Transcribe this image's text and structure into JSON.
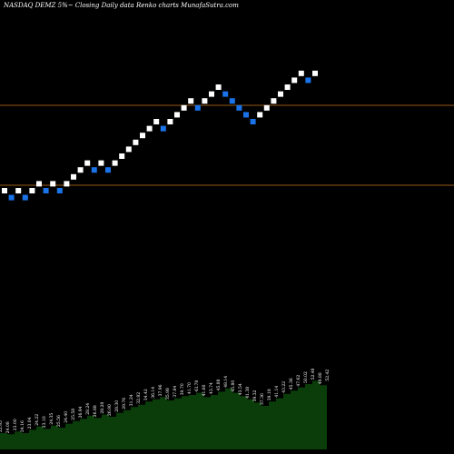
{
  "chart_data": {
    "type": "renko",
    "title": "NASDAQ DEMZ 5%~  Closing Daily data  Renko  charts MunafaSutra.com",
    "brick_directions": [
      1,
      -1,
      1,
      -1,
      1,
      1,
      -1,
      1,
      -1,
      1,
      1,
      1,
      1,
      -1,
      1,
      -1,
      1,
      1,
      1,
      1,
      1,
      1,
      1,
      -1,
      1,
      1,
      1,
      1,
      -1,
      1,
      1,
      1,
      -1,
      -1,
      -1,
      -1,
      -1,
      1,
      1,
      1,
      1,
      1,
      1,
      1,
      -1,
      1
    ],
    "brick_colors": {
      "up": "#ffffff",
      "down": "#1a73e8"
    },
    "reference_lines": [
      {
        "label": "upper",
        "color": "#c8781e"
      },
      {
        "label": "lower",
        "color": "#c8781e"
      }
    ],
    "volume_area_color": "#0a3d0a",
    "volume_labels": [
      "22.95",
      "24.08",
      "23.00",
      "24.16",
      "23.04",
      "24.22",
      "23.10",
      "24.35",
      "25.56",
      "24.40",
      "25.58",
      "26.94",
      "28.24",
      "26.88",
      "28.28",
      "26.90",
      "28.30",
      "29.76",
      "31.24",
      "32.82",
      "34.42",
      "36.14",
      "37.96",
      "35.98",
      "37.84",
      "39.70",
      "41.70",
      "43.78",
      "41.60",
      "43.74",
      "45.88",
      "48.14",
      "45.80",
      "43.54",
      "41.38",
      "39.32",
      "37.36",
      "39.18",
      "41.14",
      "43.22",
      "45.36",
      "47.62",
      "50.02",
      "52.48",
      "49.88",
      "52.42"
    ],
    "volume_values": [
      0.3,
      0.28,
      0.33,
      0.3,
      0.36,
      0.42,
      0.38,
      0.44,
      0.4,
      0.47,
      0.52,
      0.56,
      0.62,
      0.58,
      0.64,
      0.6,
      0.67,
      0.72,
      0.78,
      0.82,
      0.88,
      0.92,
      0.96,
      0.9,
      0.94,
      0.98,
      1.0,
      1.04,
      0.96,
      1.0,
      1.06,
      1.12,
      1.04,
      0.98,
      0.92,
      0.86,
      0.8,
      0.88,
      0.94,
      1.02,
      1.08,
      1.14,
      1.2,
      1.26,
      1.18,
      1.24
    ]
  }
}
